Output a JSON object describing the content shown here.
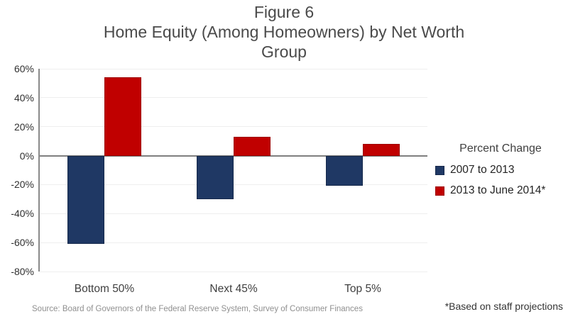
{
  "title": {
    "line1": "Figure 6",
    "line2": "Home Equity (Among Homeowners) by Net Worth",
    "line3": "Group"
  },
  "legend": {
    "title": "Percent Change"
  },
  "source_note": "Source: Board of Governors of the Federal Reserve System, Survey of Consumer Finances",
  "footnote": "*Based on staff projections",
  "chart_data": {
    "type": "bar",
    "title": "Figure 6 Home Equity (Among Homeowners) by Net Worth Group",
    "categories": [
      "Bottom 50%",
      "Next 45%",
      "Top 5%"
    ],
    "series": [
      {
        "name": "2007 to 2013",
        "color": "#1F3864",
        "edge_color": "#16294b",
        "values": [
          -61,
          -30,
          -21
        ]
      },
      {
        "name": "2013 to June 2014*",
        "color": "#C00000",
        "edge_color": "#9d0000",
        "values": [
          54,
          13,
          8
        ]
      }
    ],
    "legend_title": "Percent Change",
    "legend_position": "right",
    "xlabel": "",
    "ylabel": "Percent Change",
    "ylim": [
      -80,
      60
    ],
    "ytick_step": 20,
    "ytick_labels": [
      "60%",
      "40%",
      "20%",
      "0%",
      "-20%",
      "-40%",
      "-60%",
      "-80%"
    ],
    "grid": true,
    "axis_color": "#8a8a8a",
    "zero_line_color": "#7f7f7f",
    "gridline_color": "#eeeeee"
  }
}
